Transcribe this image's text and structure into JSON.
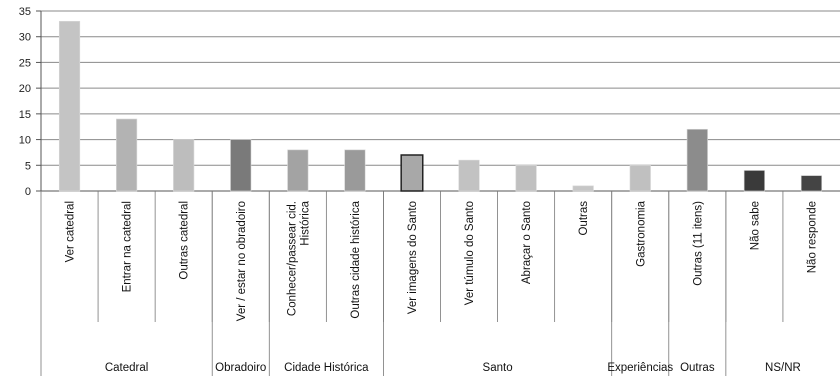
{
  "chart_data": {
    "type": "bar",
    "ylim": [
      0,
      35
    ],
    "yticks": [
      0,
      5,
      10,
      15,
      20,
      25,
      30,
      35
    ],
    "grid": true,
    "legend": "none",
    "categories": [
      "Ver catedral",
      "Entrar na catedral",
      "Outras catedral",
      "Ver / estar no obradoiro",
      "Conhecer/passear cid. Histórica",
      "Outras cidade histórica",
      "Ver imagens do Santo",
      "Ver túmulo do Santo",
      "Abraçar o Santo",
      "Outras",
      "Gastronomia",
      "Outras (11 itens)",
      "Não sabe",
      "Não responde"
    ],
    "values": [
      33,
      14,
      10,
      10,
      8,
      8,
      7,
      6,
      5,
      1,
      5,
      12,
      4,
      3
    ],
    "bar_colors": [
      "#c4c4c4",
      "#b3b3b3",
      "#bdbdbd",
      "#7a7a7a",
      "#a3a3a3",
      "#9a9a9a",
      "#a8a8a8",
      "#c2c2c2",
      "#c0c0c0",
      "#c6c6c6",
      "#c0c0c0",
      "#8c8c8c",
      "#3a3a3a",
      "#444444"
    ],
    "groups": [
      {
        "label": "Catedral",
        "span": 3
      },
      {
        "label": "Obradoiro",
        "span": 1
      },
      {
        "label": "Cidade Histórica",
        "span": 2
      },
      {
        "label": "Santo",
        "span": 4
      },
      {
        "label": "Experiências",
        "span": 1
      },
      {
        "label": "Outras",
        "span": 1
      },
      {
        "label": "NS/NR",
        "span": 2
      }
    ]
  }
}
